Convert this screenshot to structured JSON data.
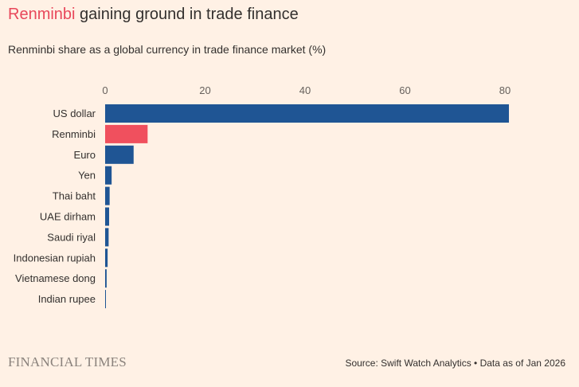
{
  "header": {
    "title_highlight": "Renminbi",
    "title_rest": " gaining ground in trade finance",
    "subtitle": "Renminbi share as a global currency in trade finance market (%)"
  },
  "footer": {
    "logo_text": "FINANCIAL TIMES",
    "source": "Source: Swift Watch Analytics • Data as of Jan 2026"
  },
  "colors": {
    "background": "#fff1e5",
    "bar_default": "#1f5594",
    "bar_highlight": "#f0505e"
  },
  "chart_data": {
    "type": "bar",
    "orientation": "horizontal",
    "categories": [
      "US dollar",
      "Renminbi",
      "Euro",
      "Yen",
      "Thai baht",
      "UAE dirham",
      "Saudi riyal",
      "Indonesian rupiah",
      "Vietnamese dong",
      "Indian rupee"
    ],
    "values": [
      80.8,
      8.5,
      5.7,
      1.3,
      0.9,
      0.8,
      0.7,
      0.5,
      0.3,
      0.1
    ],
    "highlight": "Renminbi",
    "xlim": [
      0,
      80
    ],
    "xticks": [
      0,
      20,
      40,
      60,
      80
    ],
    "xaxis_position": "top",
    "grid": false
  }
}
